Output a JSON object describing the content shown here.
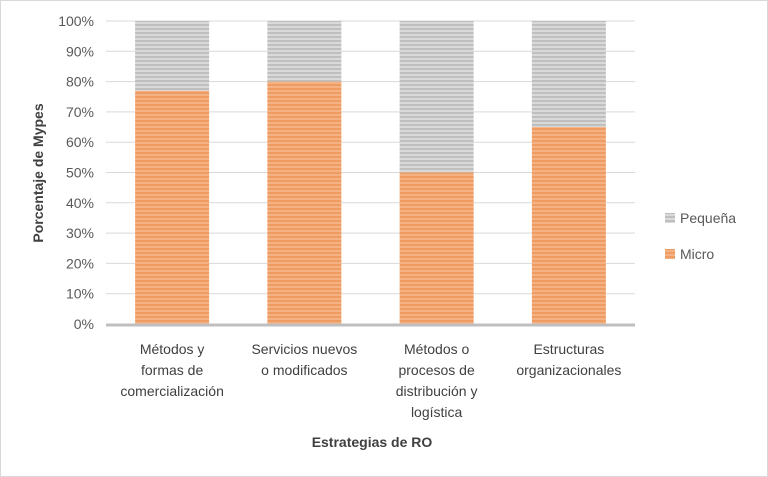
{
  "chart_data": {
    "type": "bar",
    "stacked": "percent",
    "xlabel": "Estrategias de RO",
    "ylabel": "Porcentaje de Mypes",
    "ylim": [
      0,
      100
    ],
    "yticks": [
      "0%",
      "10%",
      "20%",
      "30%",
      "40%",
      "50%",
      "60%",
      "70%",
      "80%",
      "90%",
      "100%"
    ],
    "categories": [
      [
        "Métodos y",
        "formas de",
        "comercialización"
      ],
      [
        "Servicios nuevos",
        "o modificados"
      ],
      [
        "Métodos o",
        "procesos de",
        "distribución y",
        "logística"
      ],
      [
        "Estructuras",
        "organizacionales"
      ]
    ],
    "series": [
      {
        "name": "Micro",
        "values": [
          77,
          80,
          50,
          65
        ],
        "color": "#f4a671"
      },
      {
        "name": "Pequeña",
        "values": [
          23,
          20,
          50,
          35
        ],
        "color": "#c9c9c9"
      }
    ],
    "legend": {
      "placement": "right",
      "order": [
        "Pequeña",
        "Micro"
      ]
    },
    "grid": true
  }
}
